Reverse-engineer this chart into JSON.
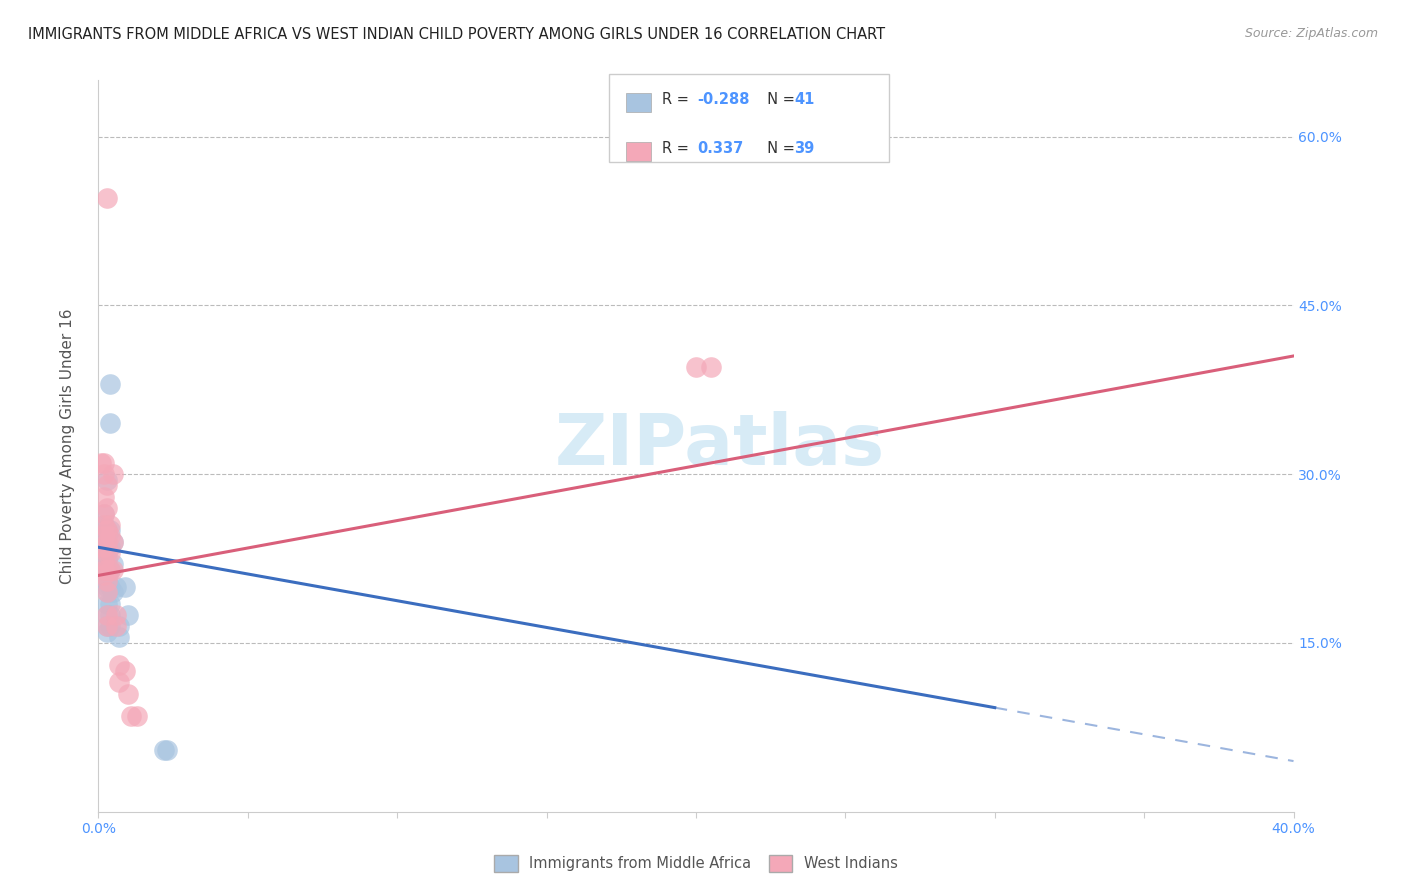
{
  "title": "IMMIGRANTS FROM MIDDLE AFRICA VS WEST INDIAN CHILD POVERTY AMONG GIRLS UNDER 16 CORRELATION CHART",
  "source": "Source: ZipAtlas.com",
  "ylabel": "Child Poverty Among Girls Under 16",
  "xlim": [
    0.0,
    0.4
  ],
  "ylim": [
    0.0,
    0.65
  ],
  "xticks": [
    0.0,
    0.05,
    0.1,
    0.15,
    0.2,
    0.25,
    0.3,
    0.35,
    0.4
  ],
  "xticklabels": [
    "0.0%",
    "",
    "",
    "",
    "",
    "",
    "",
    "",
    "40.0%"
  ],
  "ytick_positions": [
    0.0,
    0.15,
    0.3,
    0.45,
    0.6
  ],
  "ytick_labels": [
    "",
    "15.0%",
    "30.0%",
    "45.0%",
    "60.0%"
  ],
  "watermark": "ZIPatlas",
  "color_blue": "#a8c4e0",
  "color_pink": "#f4a8b8",
  "line_blue": "#3b6dbf",
  "line_pink": "#d95f7a",
  "axis_color": "#cccccc",
  "grid_color": "#bbbbbb",
  "label_color": "#4d94ff",
  "blue_scatter": [
    [
      0.001,
      0.225
    ],
    [
      0.002,
      0.265
    ],
    [
      0.002,
      0.255
    ],
    [
      0.002,
      0.245
    ],
    [
      0.002,
      0.225
    ],
    [
      0.002,
      0.22
    ],
    [
      0.002,
      0.215
    ],
    [
      0.002,
      0.21
    ],
    [
      0.003,
      0.295
    ],
    [
      0.003,
      0.25
    ],
    [
      0.003,
      0.245
    ],
    [
      0.003,
      0.235
    ],
    [
      0.003,
      0.225
    ],
    [
      0.003,
      0.215
    ],
    [
      0.003,
      0.21
    ],
    [
      0.003,
      0.205
    ],
    [
      0.003,
      0.2
    ],
    [
      0.003,
      0.195
    ],
    [
      0.003,
      0.185
    ],
    [
      0.003,
      0.175
    ],
    [
      0.003,
      0.165
    ],
    [
      0.003,
      0.16
    ],
    [
      0.004,
      0.38
    ],
    [
      0.004,
      0.345
    ],
    [
      0.004,
      0.25
    ],
    [
      0.004,
      0.235
    ],
    [
      0.004,
      0.215
    ],
    [
      0.004,
      0.2
    ],
    [
      0.004,
      0.185
    ],
    [
      0.004,
      0.175
    ],
    [
      0.004,
      0.165
    ],
    [
      0.005,
      0.24
    ],
    [
      0.005,
      0.22
    ],
    [
      0.005,
      0.195
    ],
    [
      0.006,
      0.2
    ],
    [
      0.007,
      0.165
    ],
    [
      0.007,
      0.155
    ],
    [
      0.009,
      0.2
    ],
    [
      0.01,
      0.175
    ],
    [
      0.022,
      0.055
    ],
    [
      0.023,
      0.055
    ]
  ],
  "pink_scatter": [
    [
      0.001,
      0.31
    ],
    [
      0.002,
      0.31
    ],
    [
      0.002,
      0.3
    ],
    [
      0.002,
      0.28
    ],
    [
      0.002,
      0.265
    ],
    [
      0.002,
      0.255
    ],
    [
      0.002,
      0.245
    ],
    [
      0.002,
      0.235
    ],
    [
      0.002,
      0.225
    ],
    [
      0.002,
      0.215
    ],
    [
      0.002,
      0.21
    ],
    [
      0.003,
      0.545
    ],
    [
      0.003,
      0.29
    ],
    [
      0.003,
      0.27
    ],
    [
      0.003,
      0.25
    ],
    [
      0.003,
      0.24
    ],
    [
      0.003,
      0.23
    ],
    [
      0.003,
      0.215
    ],
    [
      0.003,
      0.205
    ],
    [
      0.003,
      0.195
    ],
    [
      0.003,
      0.175
    ],
    [
      0.003,
      0.165
    ],
    [
      0.004,
      0.255
    ],
    [
      0.004,
      0.245
    ],
    [
      0.004,
      0.23
    ],
    [
      0.004,
      0.215
    ],
    [
      0.005,
      0.3
    ],
    [
      0.005,
      0.24
    ],
    [
      0.005,
      0.215
    ],
    [
      0.006,
      0.175
    ],
    [
      0.006,
      0.165
    ],
    [
      0.007,
      0.13
    ],
    [
      0.007,
      0.115
    ],
    [
      0.009,
      0.125
    ],
    [
      0.01,
      0.105
    ],
    [
      0.011,
      0.085
    ],
    [
      0.013,
      0.085
    ],
    [
      0.2,
      0.395
    ],
    [
      0.205,
      0.395
    ]
  ],
  "blue_line": {
    "x0": 0.0,
    "y0": 0.235,
    "x1": 0.4,
    "y1": 0.045,
    "solid_end": 0.3
  },
  "pink_line": {
    "x0": 0.0,
    "y0": 0.21,
    "x1": 0.4,
    "y1": 0.405
  }
}
